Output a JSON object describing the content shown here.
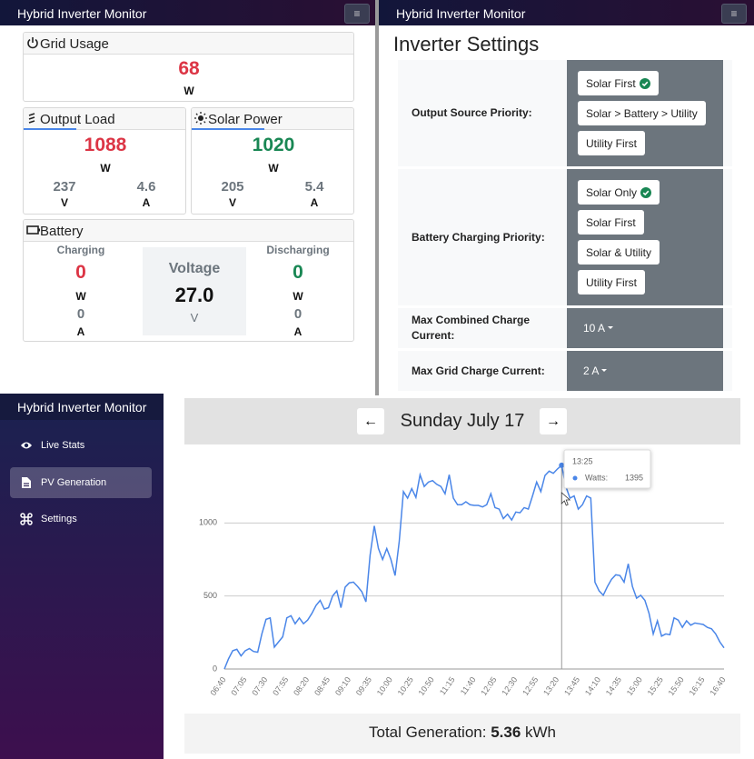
{
  "stats_panel": {
    "app_title": "Hybrid Inverter Monitor",
    "menu_icon": "≡",
    "grid_usage": {
      "title": "Grid Usage",
      "value": 68,
      "unit": "W"
    },
    "output_load": {
      "title": "Output Load",
      "value": 1088,
      "unit": "W",
      "voltage": 237,
      "voltage_unit": "V",
      "current": 4.6,
      "current_unit": "A"
    },
    "solar_power": {
      "title": "Solar Power",
      "value": 1020,
      "unit": "W",
      "voltage": 205,
      "voltage_unit": "V",
      "current": 5.4,
      "current_unit": "A"
    },
    "battery": {
      "title": "Battery",
      "charging": {
        "label": "Charging",
        "power": 0,
        "power_unit": "W",
        "current": 0,
        "current_unit": "A"
      },
      "voltage": {
        "label": "Voltage",
        "value": "27.0",
        "unit": "V"
      },
      "discharging": {
        "label": "Discharging",
        "power": 0,
        "power_unit": "W",
        "current": 0,
        "current_unit": "A"
      }
    }
  },
  "settings_panel": {
    "app_title": "Hybrid Inverter Monitor",
    "menu_icon": "≡",
    "title": "Inverter Settings",
    "rows": [
      {
        "label": "Output Source Priority:",
        "options": [
          "Solar First",
          "Solar > Battery > Utility",
          "Utility First"
        ],
        "selected": 0
      },
      {
        "label": "Battery Charging Priority:",
        "options": [
          "Solar Only",
          "Solar First",
          "Solar & Utility",
          "Utility First"
        ],
        "selected": 0
      },
      {
        "label": "Max Combined Charge Current:",
        "dropdown": "10 A"
      },
      {
        "label": "Max Grid Charge Current:",
        "dropdown": "2 A"
      }
    ]
  },
  "generation_page": {
    "app_title": "Hybrid Inverter Monitor",
    "nav": [
      "Live Stats",
      "PV Generation",
      "Settings"
    ],
    "active_nav": 1,
    "prev": "←",
    "date": "Sunday July 17",
    "next": "→",
    "total_label": "Total Generation:",
    "total_value": 5.36,
    "total_unit": "kWh"
  },
  "chart_data": {
    "type": "line",
    "color": "#4a86e8",
    "grid": true,
    "ylim": [
      0,
      1500
    ],
    "yticks": [
      0,
      500,
      1000
    ],
    "categories": [
      "06:40",
      null,
      null,
      null,
      null,
      "07:05",
      null,
      null,
      null,
      null,
      "07:30",
      null,
      null,
      null,
      null,
      "07:55",
      null,
      null,
      null,
      null,
      "08:20",
      null,
      null,
      null,
      null,
      "08:45",
      null,
      null,
      null,
      null,
      "09:10",
      null,
      null,
      null,
      null,
      "09:35",
      null,
      null,
      null,
      null,
      "10:00",
      null,
      null,
      null,
      null,
      "10:25",
      null,
      null,
      null,
      null,
      "10:50",
      null,
      null,
      null,
      null,
      "11:15",
      null,
      null,
      null,
      null,
      "11:40",
      null,
      null,
      null,
      null,
      "12:05",
      null,
      null,
      null,
      null,
      "12:30",
      null,
      null,
      null,
      null,
      "12:55",
      null,
      null,
      null,
      null,
      "13:20",
      null,
      null,
      null,
      null,
      "13:45",
      null,
      null,
      null,
      null,
      "14:10",
      null,
      null,
      null,
      null,
      "14:35",
      null,
      null,
      null,
      null,
      "15:00",
      null,
      null,
      null,
      null,
      "15:25",
      null,
      null,
      null,
      null,
      "15:50",
      null,
      null,
      null,
      null,
      "16:15",
      null,
      null,
      null,
      null,
      "16:40"
    ],
    "values": [
      0,
      70,
      125,
      135,
      90,
      125,
      140,
      120,
      115,
      240,
      340,
      350,
      150,
      185,
      220,
      350,
      365,
      310,
      350,
      310,
      335,
      380,
      435,
      470,
      410,
      420,
      500,
      535,
      420,
      560,
      590,
      595,
      565,
      530,
      460,
      780,
      980,
      825,
      750,
      825,
      750,
      640,
      875,
      1215,
      1170,
      1235,
      1175,
      1330,
      1250,
      1280,
      1290,
      1265,
      1250,
      1200,
      1330,
      1170,
      1125,
      1125,
      1145,
      1125,
      1120,
      1120,
      1110,
      1125,
      1200,
      1105,
      1095,
      1030,
      1060,
      1020,
      1075,
      1070,
      1105,
      1095,
      1185,
      1280,
      1215,
      1325,
      1355,
      1340,
      1370,
      1395,
      1250,
      1170,
      1185,
      1095,
      1125,
      1185,
      1170,
      595,
      535,
      505,
      565,
      615,
      645,
      640,
      595,
      720,
      565,
      485,
      505,
      470,
      380,
      240,
      330,
      225,
      240,
      235,
      350,
      335,
      285,
      330,
      300,
      315,
      310,
      305,
      285,
      275,
      240,
      185,
      145
    ],
    "tooltip": {
      "x": "13:25",
      "name": "Watts:",
      "value": 1395
    }
  }
}
